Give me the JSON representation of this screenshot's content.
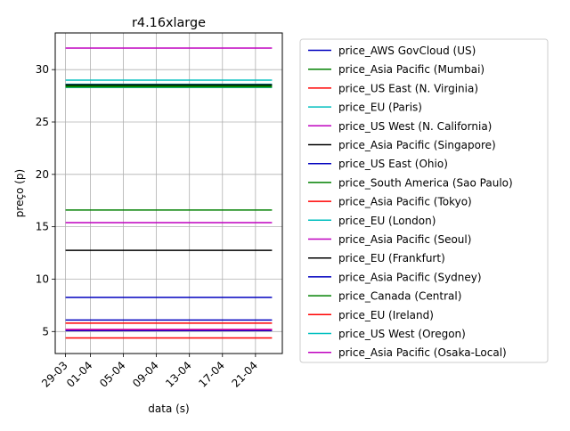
{
  "chart_data": {
    "type": "line",
    "title": "r4.16xlarge",
    "xlabel": "data (s)",
    "ylabel": "preço (p)",
    "x_ticks": [
      "29-03",
      "01-04",
      "05-04",
      "09-04",
      "13-04",
      "17-04",
      "21-04"
    ],
    "x_tick_dates": [
      "2017-03-29",
      "2017-04-01",
      "2017-04-05",
      "2017-04-09",
      "2017-04-13",
      "2017-04-17",
      "2017-04-21"
    ],
    "x_range": [
      "2017-03-29",
      "2017-04-23"
    ],
    "xlim": [
      "2017-03-27 18:00",
      "2017-04-24 06:00"
    ],
    "y_ticks": [
      5,
      10,
      15,
      20,
      25,
      30
    ],
    "ylim": [
      2.9,
      33.5
    ],
    "grid": true,
    "legend_position": "outside-right",
    "series": [
      {
        "name": "price_AWS GovCloud (US)",
        "color": "#0000bf",
        "values": [
          5.09,
          5.09
        ]
      },
      {
        "name": "price_Asia Pacific (Mumbai)",
        "color": "#008000",
        "values": [
          28.45,
          28.45
        ]
      },
      {
        "name": "price_US East (N. Virginia)",
        "color": "#ff0000",
        "values": [
          5.2,
          5.2
        ]
      },
      {
        "name": "price_EU (Paris)",
        "color": "#00bfbf",
        "values": [
          28.6,
          28.6
        ]
      },
      {
        "name": "price_US West (N. California)",
        "color": "#bf00bf",
        "values": [
          5.18,
          5.18
        ]
      },
      {
        "name": "price_Asia Pacific (Singapore)",
        "color": "#000000",
        "values": [
          28.55,
          28.55
        ]
      },
      {
        "name": "price_US East (Ohio)",
        "color": "#0000bf",
        "values": [
          6.1,
          6.1
        ]
      },
      {
        "name": "price_South America (Sao Paulo)",
        "color": "#008000",
        "values": [
          16.6,
          16.6
        ]
      },
      {
        "name": "price_Asia Pacific (Tokyo)",
        "color": "#ff0000",
        "values": [
          4.39,
          4.39
        ]
      },
      {
        "name": "price_EU (London)",
        "color": "#00bfbf",
        "values": [
          28.3,
          28.3
        ]
      },
      {
        "name": "price_Asia Pacific (Seoul)",
        "color": "#bf00bf",
        "values": [
          15.4,
          15.4
        ]
      },
      {
        "name": "price_EU (Frankfurt)",
        "color": "#000000",
        "values": [
          12.75,
          12.75
        ]
      },
      {
        "name": "price_Asia Pacific (Sydney)",
        "color": "#0000bf",
        "values": [
          8.25,
          8.25
        ]
      },
      {
        "name": "price_Canada (Central)",
        "color": "#008000",
        "values": [
          28.35,
          28.35
        ]
      },
      {
        "name": "price_EU (Ireland)",
        "color": "#ff0000",
        "values": [
          5.8,
          5.8
        ]
      },
      {
        "name": "price_US West (Oregon)",
        "color": "#00bfbf",
        "values": [
          29.0,
          29.0
        ]
      },
      {
        "name": "price_Asia Pacific (Osaka-Local)",
        "color": "#bf00bf",
        "values": [
          32.05,
          32.05
        ]
      }
    ],
    "x": [
      "2017-03-29",
      "2017-04-23"
    ]
  }
}
